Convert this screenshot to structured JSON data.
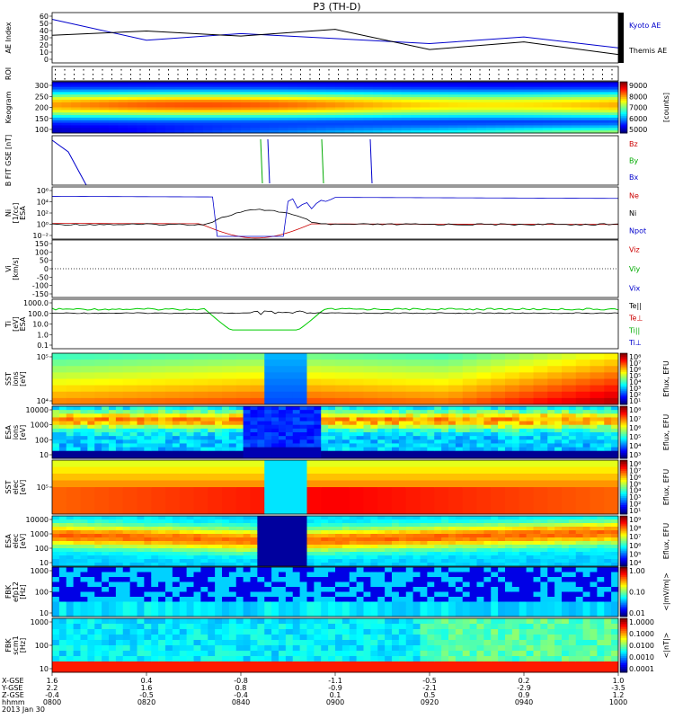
{
  "title": "P3 (TH-D)",
  "chart_data": [
    {
      "panel": "ae",
      "type": "line",
      "ylabel": "AE Index",
      "ylim": [
        0,
        60
      ],
      "yticks": [
        "60",
        "50",
        "40",
        "30",
        "20",
        "10",
        "0"
      ],
      "series": [
        {
          "name": "Kyoto AE",
          "color": "#0000cc",
          "x": [
            0,
            10,
            20,
            30,
            40,
            50,
            60
          ],
          "y": [
            52,
            27,
            35,
            29,
            23,
            31,
            18
          ]
        },
        {
          "name": "Themis AE",
          "color": "#000000",
          "x": [
            0,
            10,
            20,
            30,
            40,
            50,
            60
          ],
          "y": [
            33,
            38,
            32,
            40,
            16,
            25,
            10
          ]
        }
      ]
    },
    {
      "panel": "roi",
      "type": "heatmap",
      "ylabel": "ROI"
    },
    {
      "panel": "keogram",
      "type": "heatmap",
      "ylabel": "Keogram",
      "ylim": [
        100,
        300
      ],
      "yticks": [
        "300",
        "250",
        "200",
        "150",
        "100"
      ],
      "colorbar": {
        "label": "[counts]",
        "ticks": [
          "9000",
          "8000",
          "7000",
          "6000",
          "5000"
        ]
      }
    },
    {
      "panel": "bfield",
      "type": "line",
      "ylabel": "B FIT GSE [nT]",
      "series": [
        {
          "name": "Bz",
          "color": "#cc0000"
        },
        {
          "name": "By",
          "color": "#00aa00"
        },
        {
          "name": "Bx",
          "color": "#0000cc"
        }
      ]
    },
    {
      "panel": "density",
      "type": "line",
      "ylabel": "Ni",
      "ylabel2": "[1/cc]",
      "ylabel3": "ESA",
      "yticks": [
        "10⁶",
        "10⁴",
        "10²",
        "10⁰",
        "10⁻²"
      ],
      "series": [
        {
          "name": "Ne",
          "color": "#cc0000"
        },
        {
          "name": "Ni",
          "color": "#000000"
        },
        {
          "name": "Npot",
          "color": "#0000cc"
        }
      ]
    },
    {
      "panel": "velocity",
      "type": "line",
      "ylabel": "Vi",
      "ylabel2": "[km/s]",
      "ylim": [
        -200,
        200
      ],
      "yticks": [
        "150",
        "100",
        "50",
        "0",
        "-50",
        "-100",
        "-150"
      ],
      "series": [
        {
          "name": "Viz",
          "color": "#cc0000"
        },
        {
          "name": "Viy",
          "color": "#00aa00"
        },
        {
          "name": "Vix",
          "color": "#0000cc"
        }
      ]
    },
    {
      "panel": "temperature",
      "type": "line",
      "ylabel": "Ti",
      "ylabel2": "[eV]",
      "ylabel3": "ESA",
      "yticks": [
        "1000.0",
        "100.0",
        "10.0",
        "1.0",
        "0.1"
      ],
      "series": [
        {
          "name": "Te||",
          "color": "#000000"
        },
        {
          "name": "Te⊥",
          "color": "#cc0000"
        },
        {
          "name": "Ti||",
          "color": "#00aa00"
        },
        {
          "name": "Ti⊥",
          "color": "#0000cc"
        }
      ]
    },
    {
      "panel": "sst_ion",
      "type": "heatmap",
      "ylabel": "SST",
      "ylabel2": "ions",
      "ylabel3": "[eV]",
      "yticks": [
        "10⁵",
        "10⁴"
      ],
      "colorbar": {
        "label": "Eflux, EFU",
        "ticks": [
          "10⁸",
          "10⁷",
          "10⁶",
          "10⁵",
          "10⁴",
          "10³",
          "10²",
          "10¹"
        ]
      }
    },
    {
      "panel": "esa_ion",
      "type": "heatmap",
      "ylabel": "ESA",
      "ylabel2": "ions",
      "ylabel3": "[eV]",
      "yticks": [
        "10000",
        "1000",
        "100",
        "10"
      ],
      "colorbar": {
        "label": "Eflux, EFU",
        "ticks": [
          "10⁸",
          "10⁷",
          "10⁶",
          "10⁵",
          "10⁴",
          "10³"
        ]
      }
    },
    {
      "panel": "sst_elec",
      "type": "heatmap",
      "ylabel": "SST",
      "ylabel2": "elec",
      "ylabel3": "[eV]",
      "yticks": [
        "10⁵"
      ],
      "colorbar": {
        "label": "Eflux, EFU",
        "ticks": [
          "10⁸",
          "10⁷",
          "10⁶",
          "10⁵",
          "10⁴",
          "10³",
          "10²",
          "10¹"
        ]
      }
    },
    {
      "panel": "esa_elec",
      "type": "heatmap",
      "ylabel": "ESA",
      "ylabel2": "elec",
      "ylabel3": "[eV]",
      "yticks": [
        "10000",
        "1000",
        "100",
        "10"
      ],
      "colorbar": {
        "label": "Eflux, EFU",
        "ticks": [
          "10⁹",
          "10⁸",
          "10⁷",
          "10⁶",
          "10⁵",
          "10⁴"
        ]
      }
    },
    {
      "panel": "fbk_e",
      "type": "heatmap",
      "ylabel": "FBK",
      "ylabel2": "efp12",
      "ylabel3": "[Hz]",
      "yticks": [
        "1000",
        "100",
        "10"
      ],
      "colorbar": {
        "label": "<|mV/m|>",
        "ticks": [
          "1.00",
          "0.10",
          "0.01"
        ]
      }
    },
    {
      "panel": "fbk_b",
      "type": "heatmap",
      "ylabel": "FBK",
      "ylabel2": "scm1",
      "ylabel3": "[Hz]",
      "yticks": [
        "1000",
        "100",
        "10"
      ],
      "colorbar": {
        "label": "<|nT|>",
        "ticks": [
          "1.0000",
          "0.1000",
          "0.0100",
          "0.0010",
          "0.0001"
        ]
      }
    }
  ],
  "footer": {
    "row_labels": [
      "X-GSE",
      "Y-GSE",
      "Z-GSE",
      "hhmm",
      "2013 Jan 30"
    ],
    "columns": [
      {
        "vals": [
          "1.6",
          "2.2",
          "-0.4",
          "0800"
        ]
      },
      {
        "vals": [
          "0.4",
          "1.6",
          "-0.5",
          "0820"
        ]
      },
      {
        "vals": [
          "-0.8",
          "0.8",
          "-0.4",
          "0840"
        ]
      },
      {
        "vals": [
          "-1.1",
          "-0.9",
          "0.1",
          "0900"
        ]
      },
      {
        "vals": [
          "-0.5",
          "-2.1",
          "0.5",
          "0920"
        ]
      },
      {
        "vals": [
          "0.2",
          "-2.9",
          "0.9",
          "0940"
        ]
      },
      {
        "vals": [
          "1.0",
          "-3.5",
          "1.2",
          "1000"
        ]
      }
    ]
  }
}
